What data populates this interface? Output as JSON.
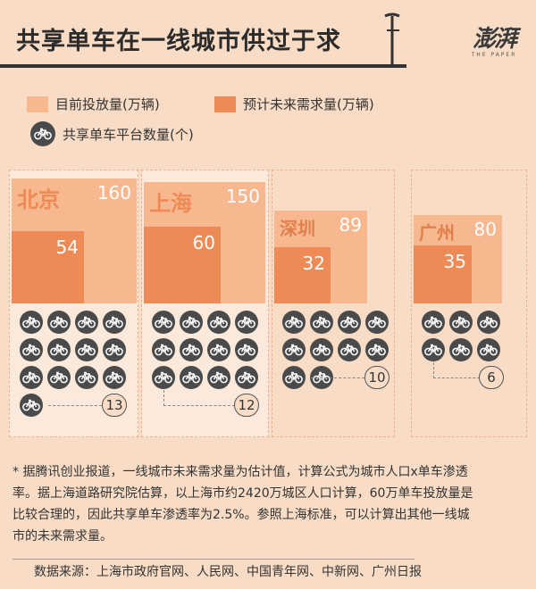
{
  "header": {
    "title": "共享单车在一线城市供过于求",
    "logo_text": "澎湃",
    "logo_sub": "THE PAPER"
  },
  "legend": {
    "current": "目前投放量(万辆)",
    "forecast": "预计未来需求量(万辆)",
    "platforms": "共享单车平台数量(个)"
  },
  "colors": {
    "background": "#f9dcc5",
    "current": "#f7b88f",
    "forecast": "#ee8a55",
    "bike": "#4a4a4a",
    "text": "#333333"
  },
  "chart_data": {
    "type": "bar",
    "categories": [
      "北京",
      "上海",
      "深圳",
      "广州"
    ],
    "series": [
      {
        "name": "目前投放量(万辆)",
        "values": [
          160,
          150,
          89,
          80
        ]
      },
      {
        "name": "预计未来需求量(万辆)",
        "values": [
          54,
          60,
          32,
          35
        ]
      },
      {
        "name": "共享单车平台数量(个)",
        "values": [
          13,
          12,
          10,
          6
        ]
      }
    ]
  },
  "footnote": {
    "lines": [
      "* 据腾讯创业报道，一线城市未来需求量为估计值，计算公式为城市人口x单车渗透",
      "率。据上海道路研究院估算，以上海市约2420万城区人口计算，60万单车投放量是",
      "比较合理的，因此共享单车渗透率为2.5%。参照上海标准，可以计算出其他一线城",
      "市的未来需求量。"
    ]
  },
  "source": "数据来源：上海市政府官网、人民网、中国青年网、中新网、广州日报"
}
